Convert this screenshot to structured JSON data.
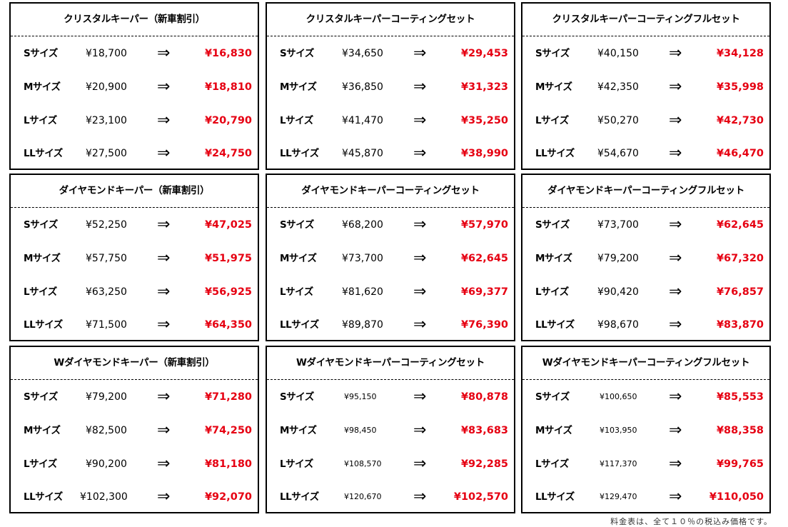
{
  "arrow": "⇒",
  "note": "料金表は、全て１０％の税込み価格です。",
  "boxes": [
    {
      "title": "クリスタルキーパー（新車割引）",
      "small": false,
      "rows": [
        {
          "size": "Sサイズ",
          "orig": "¥18,700",
          "sale": "¥16,830"
        },
        {
          "size": "Mサイズ",
          "orig": "¥20,900",
          "sale": "¥18,810"
        },
        {
          "size": "Lサイズ",
          "orig": "¥23,100",
          "sale": "¥20,790"
        },
        {
          "size": "LLサイズ",
          "orig": "¥27,500",
          "sale": "¥24,750"
        }
      ]
    },
    {
      "title": "クリスタルキーパーコーティングセット",
      "small": false,
      "rows": [
        {
          "size": "Sサイズ",
          "orig": "¥34,650",
          "sale": "¥29,453"
        },
        {
          "size": "Mサイズ",
          "orig": "¥36,850",
          "sale": "¥31,323"
        },
        {
          "size": "Lサイズ",
          "orig": "¥41,470",
          "sale": "¥35,250"
        },
        {
          "size": "LLサイズ",
          "orig": "¥45,870",
          "sale": "¥38,990"
        }
      ]
    },
    {
      "title": "クリスタルキーパーコーティングフルセット",
      "small": false,
      "rows": [
        {
          "size": "Sサイズ",
          "orig": "¥40,150",
          "sale": "¥34,128"
        },
        {
          "size": "Mサイズ",
          "orig": "¥42,350",
          "sale": "¥35,998"
        },
        {
          "size": "Lサイズ",
          "orig": "¥50,270",
          "sale": "¥42,730"
        },
        {
          "size": "LLサイズ",
          "orig": "¥54,670",
          "sale": "¥46,470"
        }
      ]
    },
    {
      "title": "ダイヤモンドキーパー（新車割引）",
      "small": false,
      "rows": [
        {
          "size": "Sサイズ",
          "orig": "¥52,250",
          "sale": "¥47,025"
        },
        {
          "size": "Mサイズ",
          "orig": "¥57,750",
          "sale": "¥51,975"
        },
        {
          "size": "Lサイズ",
          "orig": "¥63,250",
          "sale": "¥56,925"
        },
        {
          "size": "LLサイズ",
          "orig": "¥71,500",
          "sale": "¥64,350"
        }
      ]
    },
    {
      "title": "ダイヤモンドキーパーコーティングセット",
      "small": false,
      "rows": [
        {
          "size": "Sサイズ",
          "orig": "¥68,200",
          "sale": "¥57,970"
        },
        {
          "size": "Mサイズ",
          "orig": "¥73,700",
          "sale": "¥62,645"
        },
        {
          "size": "Lサイズ",
          "orig": "¥81,620",
          "sale": "¥69,377"
        },
        {
          "size": "LLサイズ",
          "orig": "¥89,870",
          "sale": "¥76,390"
        }
      ]
    },
    {
      "title": "ダイヤモンドキーパーコーティングフルセット",
      "small": false,
      "rows": [
        {
          "size": "Sサイズ",
          "orig": "¥73,700",
          "sale": "¥62,645"
        },
        {
          "size": "Mサイズ",
          "orig": "¥79,200",
          "sale": "¥67,320"
        },
        {
          "size": "Lサイズ",
          "orig": "¥90,420",
          "sale": "¥76,857"
        },
        {
          "size": "LLサイズ",
          "orig": "¥98,670",
          "sale": "¥83,870"
        }
      ]
    },
    {
      "title": "Wダイヤモンドキーパー（新車割引）",
      "small": false,
      "rows": [
        {
          "size": "Sサイズ",
          "orig": "¥79,200",
          "sale": "¥71,280"
        },
        {
          "size": "Mサイズ",
          "orig": "¥82,500",
          "sale": "¥74,250"
        },
        {
          "size": "Lサイズ",
          "orig": "¥90,200",
          "sale": "¥81,180"
        },
        {
          "size": "LLサイズ",
          "orig": "¥102,300",
          "sale": "¥92,070"
        }
      ]
    },
    {
      "title": "Wダイヤモンドキーパーコーティングセット",
      "small": true,
      "rows": [
        {
          "size": "Sサイズ",
          "orig": "¥95,150",
          "sale": "¥80,878"
        },
        {
          "size": "Mサイズ",
          "orig": "¥98,450",
          "sale": "¥83,683"
        },
        {
          "size": "Lサイズ",
          "orig": "¥108,570",
          "sale": "¥92,285"
        },
        {
          "size": "LLサイズ",
          "orig": "¥120,670",
          "sale": "¥102,570"
        }
      ]
    },
    {
      "title": "Wダイヤモンドキーパーコーティングフルセット",
      "small": true,
      "rows": [
        {
          "size": "Sサイズ",
          "orig": "¥100,650",
          "sale": "¥85,553"
        },
        {
          "size": "Mサイズ",
          "orig": "¥103,950",
          "sale": "¥88,358"
        },
        {
          "size": "Lサイズ",
          "orig": "¥117,370",
          "sale": "¥99,765"
        },
        {
          "size": "LLサイズ",
          "orig": "¥129,470",
          "sale": "¥110,050"
        }
      ]
    }
  ]
}
